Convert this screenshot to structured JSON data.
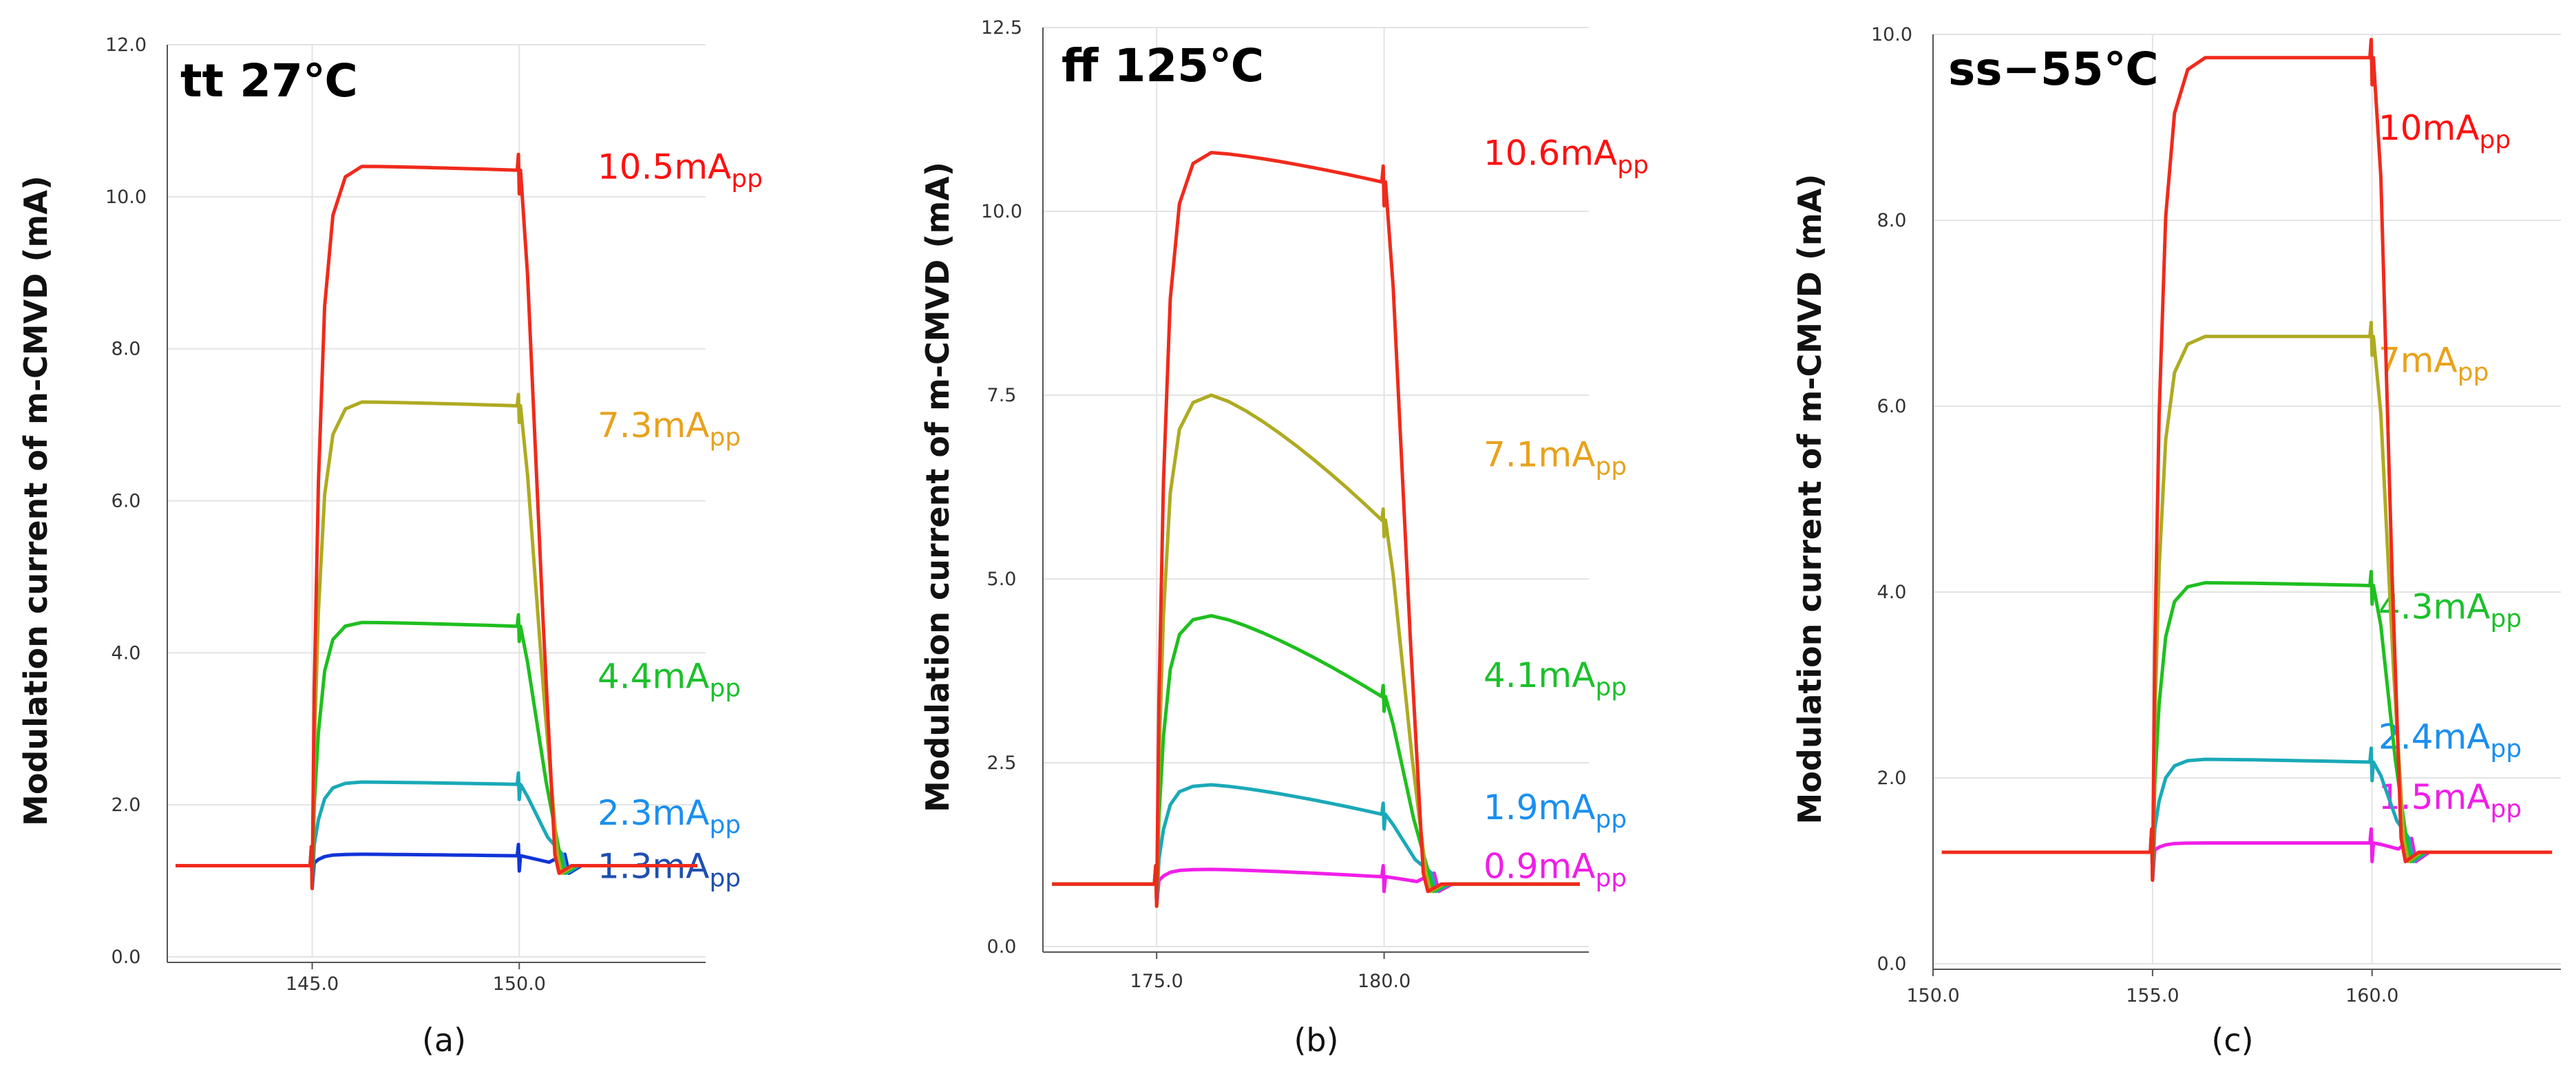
{
  "chart_data": [
    {
      "type": "line",
      "title": "tt 27℃",
      "caption": "(a)",
      "ylabel": "Modulation current of m-CMVD (mA)",
      "ylim": [
        0,
        12
      ],
      "xlim": [
        141.5,
        154.5
      ],
      "yticks": [
        0,
        2,
        4,
        6,
        8,
        10,
        12
      ],
      "ytick_labels": [
        "0.0",
        "2.0",
        "4.0",
        "6.0",
        "8.0",
        "10.0",
        "12.0"
      ],
      "xticks": [
        145,
        150
      ],
      "xtick_labels": [
        "145.0",
        "150.0"
      ],
      "x_start": 145.0,
      "x_end": 150.0,
      "fall_end": 151.2,
      "baseline": 1.2,
      "series": [
        {
          "label": "10.5mA",
          "sub": "pp",
          "color": "#f02a1c",
          "level": 10.4,
          "droop": 0.05
        },
        {
          "label": "7.3mA",
          "sub": "pp",
          "color": "#aeab22",
          "level": 7.3,
          "droop": 0.05
        },
        {
          "label": "4.4mA",
          "sub": "pp",
          "color": "#1fbf1f",
          "level": 4.4,
          "droop": 0.05
        },
        {
          "label": "2.3mA",
          "sub": "pp",
          "color": "#1aa9b8",
          "level": 2.3,
          "droop": 0.03
        },
        {
          "label": "1.3mA",
          "sub": "pp",
          "color": "#1034d8",
          "level": 1.35,
          "droop": 0.02
        }
      ],
      "label_colors": [
        "#ff1010",
        "#e8a21c",
        "#1cc02c",
        "#1a8ff0",
        "#1f4fb0"
      ]
    },
    {
      "type": "line",
      "title": "ff 125℃",
      "caption": "(b)",
      "ylabel": "Modulation current of m-CMVD (mA)",
      "ylim": [
        0,
        12.5
      ],
      "xlim": [
        172.5,
        184.5
      ],
      "yticks": [
        0,
        2.5,
        5,
        7.5,
        10,
        12.5
      ],
      "ytick_labels": [
        "0.0",
        "2.5",
        "5.0",
        "7.5",
        "10.0",
        "12.5"
      ],
      "xticks": [
        175,
        180
      ],
      "xtick_labels": [
        "175.0",
        "180.0"
      ],
      "x_start": 175.0,
      "x_end": 180.0,
      "fall_end": 181.2,
      "baseline": 0.85,
      "series": [
        {
          "label": "10.6mA",
          "sub": "pp",
          "color": "#f02a1c",
          "level": 10.8,
          "droop": 0.4
        },
        {
          "label": "7.1mA",
          "sub": "pp",
          "color": "#aeab22",
          "level": 7.5,
          "droop": 1.7
        },
        {
          "label": "4.1mA",
          "sub": "pp",
          "color": "#1fbf1f",
          "level": 4.5,
          "droop": 1.1
        },
        {
          "label": "1.9mA",
          "sub": "pp",
          "color": "#1aa9b8",
          "level": 2.2,
          "droop": 0.4
        },
        {
          "label": "0.9mA",
          "sub": "pp",
          "color": "#f01ee8",
          "level": 1.05,
          "droop": 0.1
        }
      ],
      "label_colors": [
        "#ff1010",
        "#e8a21c",
        "#1cc02c",
        "#1a8ff0",
        "#f01ee8"
      ]
    },
    {
      "type": "line",
      "title": "ss−55℃",
      "caption": "(c)",
      "ylabel": "Modulation current of m-CMVD (mA)",
      "ylim": [
        0,
        10
      ],
      "xlim": [
        150,
        164.3
      ],
      "yticks": [
        0,
        2,
        4,
        6,
        8,
        10
      ],
      "ytick_labels": [
        "0.0",
        "2.0",
        "4.0",
        "6.0",
        "8.0",
        "10.0"
      ],
      "xticks": [
        150,
        155,
        160
      ],
      "xtick_labels": [
        "150.0",
        "155.0",
        "160.0"
      ],
      "x_start": 155.0,
      "x_end": 160.0,
      "fall_end": 161.0,
      "baseline": 1.2,
      "series": [
        {
          "label": "10mA",
          "sub": "pp",
          "color": "#f02a1c",
          "level": 9.75,
          "droop": 0.0
        },
        {
          "label": "7mA",
          "sub": "pp",
          "color": "#aeab22",
          "level": 6.75,
          "droop": 0.0
        },
        {
          "label": "4.3mA",
          "sub": "pp",
          "color": "#1fbf1f",
          "level": 4.1,
          "droop": 0.03
        },
        {
          "label": "2.4mA",
          "sub": "pp",
          "color": "#1aa9b8",
          "level": 2.2,
          "droop": 0.03
        },
        {
          "label": "1.5mA",
          "sub": "pp",
          "color": "#f01ee8",
          "level": 1.3,
          "droop": 0.0
        }
      ],
      "label_colors": [
        "#ff1010",
        "#e8a21c",
        "#1cc02c",
        "#1a8ff0",
        "#f01ee8"
      ]
    }
  ]
}
